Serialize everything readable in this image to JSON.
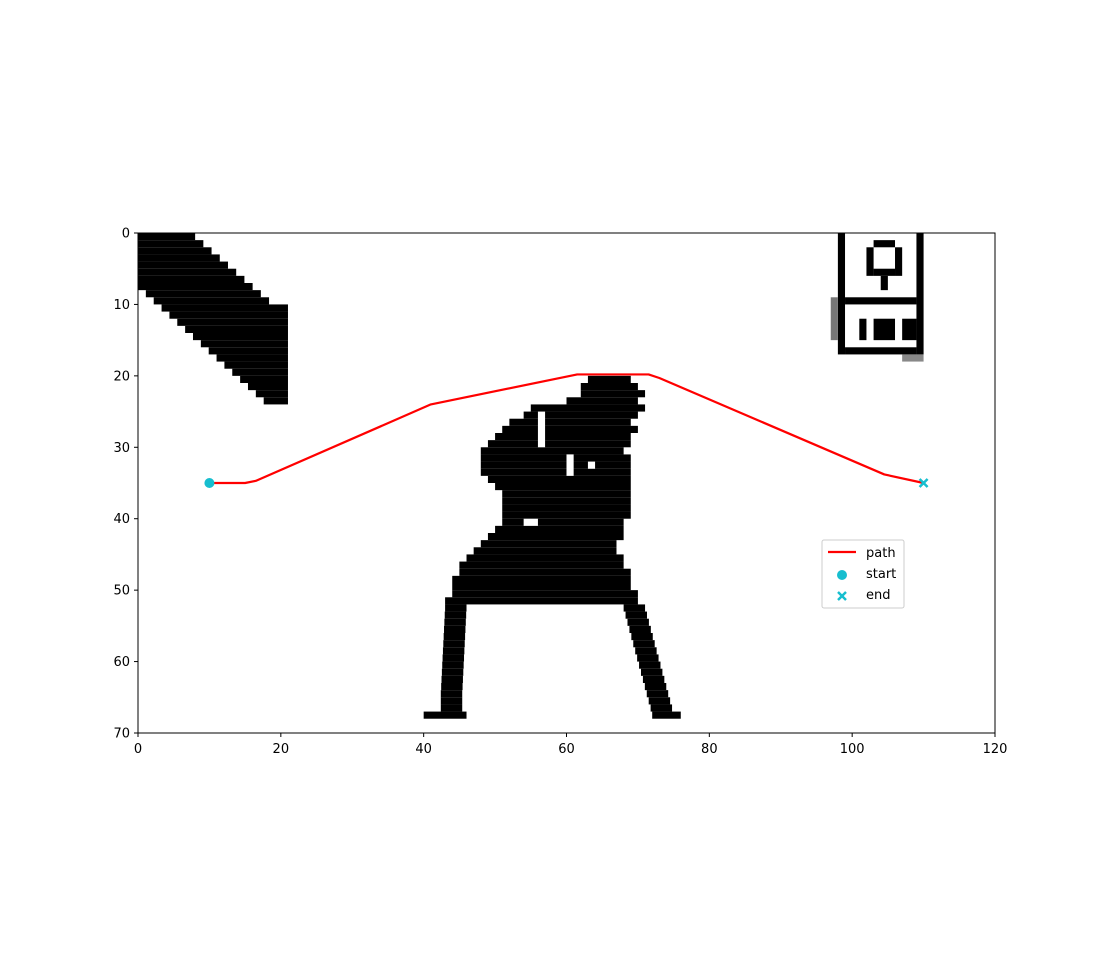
{
  "chart_data": {
    "type": "line",
    "title": "",
    "xlabel": "",
    "ylabel": "",
    "xlim": [
      0,
      120
    ],
    "ylim": [
      70,
      0
    ],
    "x_ticks": [
      0,
      20,
      40,
      60,
      80,
      100,
      120
    ],
    "y_ticks": [
      0,
      10,
      20,
      30,
      40,
      50,
      60,
      70
    ],
    "grid": false,
    "legend_position": "center-right",
    "background_image": "binary occupancy grid (black obstacles on white)",
    "series": [
      {
        "name": "path",
        "type": "line",
        "color": "#ff0000",
        "x": [
          10,
          15,
          16.5,
          41,
          61.5,
          71.5,
          73,
          104.5,
          110
        ],
        "y": [
          35,
          35,
          34.7,
          24,
          19.8,
          19.8,
          20.3,
          33.8,
          35
        ]
      },
      {
        "name": "start",
        "type": "scatter",
        "marker": "circle",
        "color": "#17becf",
        "x": [
          10
        ],
        "y": [
          35
        ]
      },
      {
        "name": "end",
        "type": "scatter",
        "marker": "x",
        "color": "#17becf",
        "x": [
          110
        ],
        "y": [
          35
        ]
      }
    ],
    "legend": [
      "path",
      "start",
      "end"
    ]
  }
}
